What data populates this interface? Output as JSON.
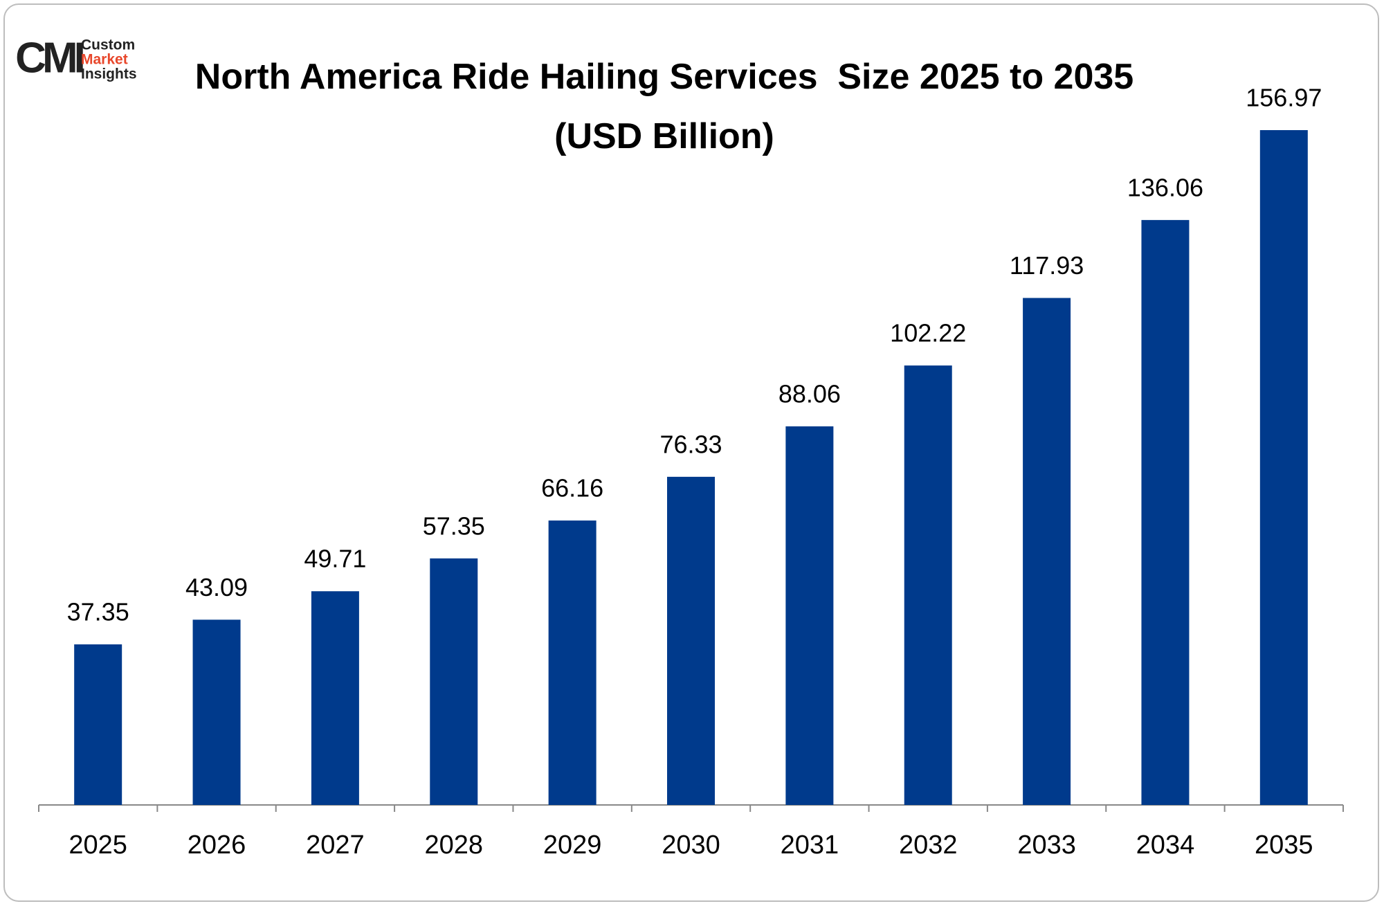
{
  "logo": {
    "mark": "CMI",
    "lines": [
      "Custom",
      "Market",
      "Insights"
    ]
  },
  "chart_data": {
    "type": "bar",
    "title": "North America Ride Hailing Services  Size 2025 to 2035 (USD Billion)",
    "categories": [
      "2025",
      "2026",
      "2027",
      "2028",
      "2029",
      "2030",
      "2031",
      "2032",
      "2033",
      "2034",
      "2035"
    ],
    "values": [
      37.35,
      43.09,
      49.71,
      57.35,
      66.16,
      76.33,
      88.06,
      102.22,
      117.93,
      136.06,
      156.97
    ],
    "color": "#003a8c"
  }
}
